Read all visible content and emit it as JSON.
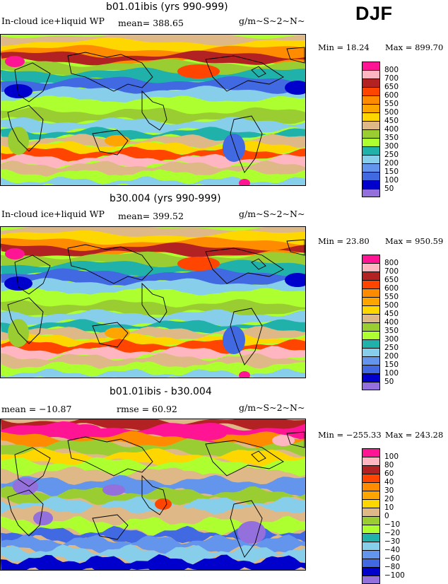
{
  "season": "DJF",
  "panels": [
    {
      "title": "b01.01ibis (yrs 990-999)",
      "field_label": "In-cloud ice+liquid WP",
      "mean_text": "mean= 388.65",
      "rmse_text": "",
      "units": "g/m~S~2~N~",
      "min_text": "Min =  18.24",
      "max_text": "Max = 899.70",
      "levels": [
        "800",
        "700",
        "650",
        "600",
        "550",
        "500",
        "450",
        "400",
        "350",
        "300",
        "250",
        "200",
        "150",
        "100",
        "50"
      ]
    },
    {
      "title": "b30.004 (yrs 990-999)",
      "field_label": "In-cloud ice+liquid WP",
      "mean_text": "mean= 399.52",
      "rmse_text": "",
      "units": "g/m~S~2~N~",
      "min_text": "Min =  23.80",
      "max_text": "Max = 950.59",
      "levels": [
        "800",
        "700",
        "650",
        "600",
        "550",
        "500",
        "450",
        "400",
        "350",
        "300",
        "250",
        "200",
        "150",
        "100",
        "50"
      ]
    },
    {
      "title": "b01.01ibis - b30.004",
      "field_label": "",
      "mean_text": "mean = −10.87",
      "rmse_text": "rmse =  60.92",
      "units": "g/m~S~2~N~",
      "min_text": "Min = −255.33",
      "max_text": "Max = 243.28",
      "levels": [
        "100",
        "80",
        "60",
        "40",
        "30",
        "20",
        "10",
        "0",
        "−10",
        "−20",
        "−30",
        "−40",
        "−60",
        "−80",
        "−100"
      ]
    }
  ],
  "colors": {
    "abs_scale": [
      "#ff1493",
      "#ffb6c1",
      "#b22222",
      "#ff4500",
      "#ff8c00",
      "#ffa500",
      "#ffd700",
      "#deb887",
      "#9acd32",
      "#adff2f",
      "#20b2aa",
      "#87ceeb",
      "#6495ed",
      "#4169e1",
      "#0000cd",
      "#9370db"
    ],
    "diff_scale": [
      "#ff1493",
      "#ffb6c1",
      "#b22222",
      "#ff4500",
      "#ff8c00",
      "#ffa500",
      "#ffd700",
      "#deb887",
      "#9acd32",
      "#adff2f",
      "#20b2aa",
      "#87ceeb",
      "#6495ed",
      "#4169e1",
      "#0000cd",
      "#9370db"
    ]
  }
}
